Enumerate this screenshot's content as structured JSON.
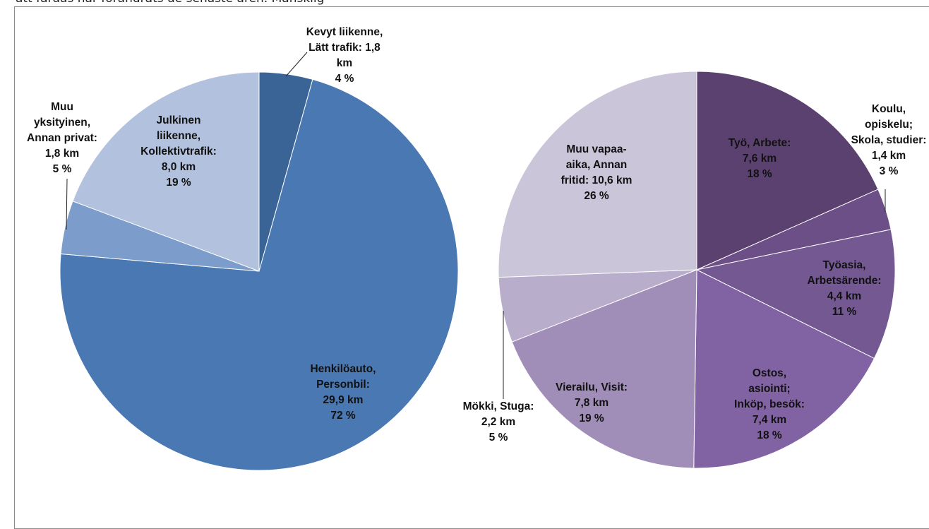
{
  "top_text": "att färdas har förändrats de senaste åren. Mänsklig",
  "chart_data": [
    {
      "type": "pie",
      "title": "",
      "slices": [
        {
          "label": [
            "Kevyt liikenne,",
            "Lätt trafik: 1,8",
            "km",
            "4 %"
          ],
          "value": 1.8,
          "percent": 4,
          "color": "#3a6496"
        },
        {
          "label": [
            "Henkilöauto,",
            "Personbil:",
            "29,9 km",
            "72 %"
          ],
          "value": 29.9,
          "percent": 72,
          "color": "#4a78b2"
        },
        {
          "label": [
            "Muu",
            "yksityinen,",
            "Annan privat:",
            "1,8 km",
            "5 %"
          ],
          "value": 1.8,
          "percent": 5,
          "color": "#7c9ccc"
        },
        {
          "label": [
            "Julkinen",
            "liikenne,",
            "Kollektivtrafik:",
            "8,0 km",
            "19 %"
          ],
          "value": 8.0,
          "percent": 19,
          "color": "#b2c1dd"
        }
      ]
    },
    {
      "type": "pie",
      "title": "",
      "slices": [
        {
          "label": [
            "Työ, Arbete:",
            "7,6 km",
            "18 %"
          ],
          "value": 7.6,
          "percent": 18,
          "color": "#5b416f"
        },
        {
          "label": [
            "Koulu,",
            "opiskelu;",
            "Skola, studier:",
            "1,4 km",
            "3 %"
          ],
          "value": 1.4,
          "percent": 3,
          "color": "#6c4f86"
        },
        {
          "label": [
            "Työasia,",
            "Arbetsärende:",
            "4,4 km",
            "11 %"
          ],
          "value": 4.4,
          "percent": 11,
          "color": "#735892"
        },
        {
          "label": [
            "Ostos,",
            "asiointi;",
            "Inköp, besök:",
            "7,4 km",
            "18 %"
          ],
          "value": 7.4,
          "percent": 18,
          "color": "#8163a3"
        },
        {
          "label": [
            "Vierailu, Visit:",
            "7,8 km",
            "19 %"
          ],
          "value": 7.8,
          "percent": 19,
          "color": "#a08eb8"
        },
        {
          "label": [
            "Mökki, Stuga:",
            "2,2 km",
            "5 %"
          ],
          "value": 2.2,
          "percent": 5,
          "color": "#b8aecb"
        },
        {
          "label": [
            "Muu vapaa-",
            "aika, Annan",
            "fritid: 10,6 km",
            "26 %"
          ],
          "value": 10.6,
          "percent": 26,
          "color": "#cbc5d9"
        }
      ]
    }
  ]
}
